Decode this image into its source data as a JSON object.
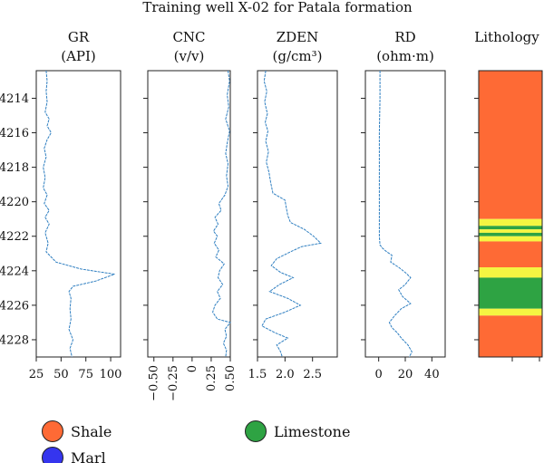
{
  "chart_data": {
    "type": "well-log",
    "title": "Training well X-02 for Patala formation",
    "depth_range": [
      4212.4,
      4229.0
    ],
    "depth_ticks": [
      4214,
      4216,
      4218,
      4220,
      4222,
      4224,
      4226,
      4228
    ],
    "depth_tick_labels": [
      "4214",
      "4216",
      "4218",
      "4220",
      "4222",
      "4224",
      "4226",
      "4228"
    ],
    "line_color": "#2f7fc1",
    "tracks": [
      {
        "id": "gr",
        "title": "GR",
        "unit": "(API)",
        "xlim": [
          25,
          110
        ],
        "xticks": [
          25,
          50,
          75,
          100
        ],
        "xtick_labels": [
          "25",
          "50",
          "75",
          "100"
        ],
        "rotate_ticks": false,
        "points": [
          [
            35,
            4212.4
          ],
          [
            36,
            4213.0
          ],
          [
            35,
            4213.6
          ],
          [
            36,
            4214.2
          ],
          [
            34,
            4214.8
          ],
          [
            38,
            4215.2
          ],
          [
            36,
            4215.6
          ],
          [
            40,
            4216.0
          ],
          [
            36,
            4216.4
          ],
          [
            33,
            4216.9
          ],
          [
            35,
            4217.4
          ],
          [
            32,
            4218.0
          ],
          [
            34,
            4218.6
          ],
          [
            32,
            4219.2
          ],
          [
            36,
            4219.6
          ],
          [
            33,
            4220.1
          ],
          [
            38,
            4220.5
          ],
          [
            34,
            4220.9
          ],
          [
            38,
            4221.3
          ],
          [
            34,
            4221.8
          ],
          [
            37,
            4222.4
          ],
          [
            35,
            4222.9
          ],
          [
            45,
            4223.5
          ],
          [
            70,
            4223.9
          ],
          [
            104,
            4224.2
          ],
          [
            85,
            4224.6
          ],
          [
            62,
            4224.9
          ],
          [
            58,
            4225.2
          ],
          [
            60,
            4225.6
          ],
          [
            59,
            4226.2
          ],
          [
            60,
            4226.8
          ],
          [
            58,
            4227.4
          ],
          [
            62,
            4228.0
          ],
          [
            59,
            4228.5
          ],
          [
            61,
            4229.0
          ]
        ]
      },
      {
        "id": "cnc",
        "title": "CNC",
        "unit": "(v/v)",
        "xlim": [
          -0.58,
          0.5
        ],
        "xticks": [
          -0.5,
          -0.25,
          0,
          0.25,
          0.5
        ],
        "xtick_labels": [
          "−0.50",
          "−0.25",
          "0",
          "0.25",
          "0.50"
        ],
        "rotate_ticks": true,
        "points": [
          [
            0.47,
            4212.4
          ],
          [
            0.49,
            4213.0
          ],
          [
            0.46,
            4213.8
          ],
          [
            0.48,
            4214.5
          ],
          [
            0.44,
            4215.2
          ],
          [
            0.49,
            4215.9
          ],
          [
            0.46,
            4216.6
          ],
          [
            0.44,
            4217.2
          ],
          [
            0.47,
            4217.8
          ],
          [
            0.45,
            4218.5
          ],
          [
            0.47,
            4219.1
          ],
          [
            0.43,
            4219.6
          ],
          [
            0.35,
            4220.1
          ],
          [
            0.38,
            4220.5
          ],
          [
            0.3,
            4220.9
          ],
          [
            0.34,
            4221.3
          ],
          [
            0.28,
            4221.7
          ],
          [
            0.33,
            4222.0
          ],
          [
            0.29,
            4222.4
          ],
          [
            0.35,
            4222.8
          ],
          [
            0.31,
            4223.2
          ],
          [
            0.42,
            4223.6
          ],
          [
            0.36,
            4224.0
          ],
          [
            0.34,
            4224.4
          ],
          [
            0.4,
            4224.8
          ],
          [
            0.33,
            4225.2
          ],
          [
            0.37,
            4225.6
          ],
          [
            0.3,
            4226.0
          ],
          [
            0.27,
            4226.4
          ],
          [
            0.33,
            4226.8
          ],
          [
            0.5,
            4227.0
          ],
          [
            0.43,
            4227.4
          ],
          [
            0.45,
            4227.8
          ],
          [
            0.41,
            4228.2
          ],
          [
            0.45,
            4228.6
          ],
          [
            0.44,
            4229.0
          ]
        ]
      },
      {
        "id": "zden",
        "title": "ZDEN",
        "unit": "(g/cm³)",
        "xlim": [
          1.5,
          2.95
        ],
        "xticks": [
          1.5,
          2.0,
          2.5
        ],
        "xtick_labels": [
          "1.5",
          "2.0",
          "2.5"
        ],
        "rotate_ticks": false,
        "points": [
          [
            1.65,
            4212.4
          ],
          [
            1.62,
            4213.0
          ],
          [
            1.67,
            4213.6
          ],
          [
            1.63,
            4214.2
          ],
          [
            1.68,
            4214.9
          ],
          [
            1.64,
            4215.4
          ],
          [
            1.69,
            4215.9
          ],
          [
            1.65,
            4216.5
          ],
          [
            1.7,
            4217.1
          ],
          [
            1.66,
            4217.7
          ],
          [
            1.71,
            4218.3
          ],
          [
            1.74,
            4218.9
          ],
          [
            1.78,
            4219.5
          ],
          [
            2.0,
            4219.9
          ],
          [
            2.02,
            4220.3
          ],
          [
            2.05,
            4220.8
          ],
          [
            2.1,
            4221.2
          ],
          [
            2.35,
            4221.6
          ],
          [
            2.52,
            4222.0
          ],
          [
            2.65,
            4222.4
          ],
          [
            2.3,
            4222.6
          ],
          [
            2.1,
            4222.9
          ],
          [
            1.85,
            4223.3
          ],
          [
            1.75,
            4223.7
          ],
          [
            1.92,
            4224.1
          ],
          [
            2.15,
            4224.4
          ],
          [
            1.9,
            4224.8
          ],
          [
            1.72,
            4225.2
          ],
          [
            2.05,
            4225.6
          ],
          [
            2.28,
            4226.0
          ],
          [
            2.0,
            4226.4
          ],
          [
            1.65,
            4226.8
          ],
          [
            1.58,
            4227.2
          ],
          [
            1.82,
            4227.6
          ],
          [
            2.05,
            4227.9
          ],
          [
            1.85,
            4228.3
          ],
          [
            1.92,
            4228.7
          ],
          [
            1.95,
            4229.0
          ]
        ]
      },
      {
        "id": "rd",
        "title": "RD",
        "unit": "(ohm·m)",
        "xlim": [
          -10,
          50
        ],
        "xticks": [
          0,
          20,
          40
        ],
        "xtick_labels": [
          "0",
          "20",
          "40"
        ],
        "rotate_ticks": false,
        "points": [
          [
            1,
            4212.4
          ],
          [
            1,
            4214.0
          ],
          [
            0.5,
            4216.0
          ],
          [
            0.5,
            4218.0
          ],
          [
            0.5,
            4220.0
          ],
          [
            0.5,
            4222.0
          ],
          [
            1,
            4222.5
          ],
          [
            3,
            4222.7
          ],
          [
            6,
            4222.9
          ],
          [
            10,
            4223.1
          ],
          [
            9,
            4223.5
          ],
          [
            15,
            4223.8
          ],
          [
            20,
            4224.1
          ],
          [
            24,
            4224.4
          ],
          [
            20,
            4224.8
          ],
          [
            15,
            4225.1
          ],
          [
            18,
            4225.5
          ],
          [
            24,
            4225.9
          ],
          [
            17,
            4226.2
          ],
          [
            12,
            4226.6
          ],
          [
            8,
            4227.0
          ],
          [
            10,
            4227.3
          ],
          [
            14,
            4227.6
          ],
          [
            17,
            4227.9
          ],
          [
            22,
            4228.3
          ],
          [
            25,
            4228.7
          ],
          [
            23,
            4229.0
          ]
        ]
      }
    ],
    "lithology": {
      "title": "Lithology",
      "intervals": [
        {
          "top": 4212.4,
          "base": 4221.0,
          "rock": "shale"
        },
        {
          "top": 4221.0,
          "base": 4221.4,
          "rock": "sand"
        },
        {
          "top": 4221.4,
          "base": 4221.6,
          "rock": "limestone"
        },
        {
          "top": 4221.6,
          "base": 4221.8,
          "rock": "sand"
        },
        {
          "top": 4221.8,
          "base": 4222.0,
          "rock": "limestone"
        },
        {
          "top": 4222.0,
          "base": 4222.3,
          "rock": "sand"
        },
        {
          "top": 4222.3,
          "base": 4223.8,
          "rock": "shale"
        },
        {
          "top": 4223.8,
          "base": 4224.4,
          "rock": "sand"
        },
        {
          "top": 4224.4,
          "base": 4226.2,
          "rock": "limestone"
        },
        {
          "top": 4226.2,
          "base": 4226.6,
          "rock": "sand"
        },
        {
          "top": 4226.6,
          "base": 4229.0,
          "rock": "shale"
        }
      ]
    },
    "colors": {
      "shale": "#fe6a35",
      "sand": "#f5f542",
      "limestone": "#2ea343",
      "marl": "#3535ee"
    },
    "legend": [
      {
        "key": "shale",
        "label": "Shale"
      },
      {
        "key": "limestone",
        "label": "Limestone"
      },
      {
        "key": "marl",
        "label": "Marl"
      }
    ]
  }
}
